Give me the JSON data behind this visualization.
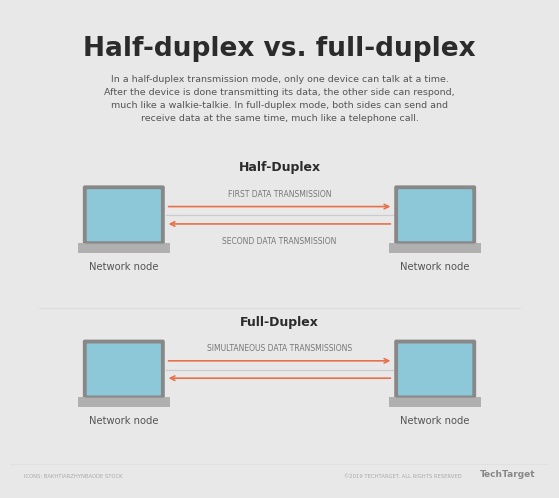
{
  "title": "Half-duplex vs. full-duplex",
  "subtitle": "In a half-duplex transmission mode, only one device can talk at a time.\nAfter the device is done transmitting its data, the other side can respond,\nmuch like a walkie-talkie. In full-duplex mode, both sides can send and\nreceive data at the same time, much like a telephone call.",
  "bg_color": "#e8e8e8",
  "card_color": "#ffffff",
  "title_color": "#2b2b2b",
  "subtitle_color": "#555555",
  "section1_label": "Half-Duplex",
  "section2_label": "Full-Duplex",
  "arrow1_label": "FIRST DATA TRANSMISSION",
  "arrow2_label": "SECOND DATA TRANSMISSION",
  "arrow3_label": "SIMULTANEOUS DATA TRANSMISSIONS",
  "node_label": "Network node",
  "arrow_color": "#e8704a",
  "line_color": "#cccccc",
  "screen_color": "#8dc8d8",
  "screen_dark_color": "#7ab8c8",
  "bezel_color": "#888888",
  "body_color": "#c0c0c0",
  "base_color": "#b0b0b0",
  "section_label_color": "#2b2b2b",
  "arrow_label_color": "#777777",
  "node_label_color": "#555555",
  "footer_left": "ICONS: BAKHTIARZHYNBAODE STOCK",
  "footer_center": "©2019 TECHTARGET. ALL RIGHTS RESERVED",
  "footer_logo": "TechTarget",
  "footer_color": "#aaaaaa",
  "divider_color": "#dddddd"
}
